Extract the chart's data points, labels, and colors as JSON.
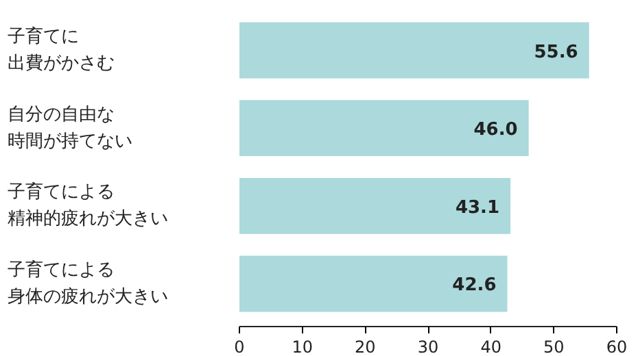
{
  "chart_data": {
    "type": "bar",
    "orientation": "horizontal",
    "categories": [
      "子育てに出費がかさむ",
      "自分の自由な時間が持てない",
      "子育てによる精神的疲れが大きい",
      "子育てによる身体の疲れが大きい"
    ],
    "values": [
      55.6,
      46.0,
      43.1,
      42.6
    ],
    "value_labels": [
      "55.6",
      "46.0",
      "43.1",
      "42.6"
    ],
    "color": "#abd9dc",
    "xlim": [
      0,
      60
    ],
    "xticks": [
      0,
      10,
      20,
      30,
      40,
      50,
      60
    ],
    "grid": false
  }
}
